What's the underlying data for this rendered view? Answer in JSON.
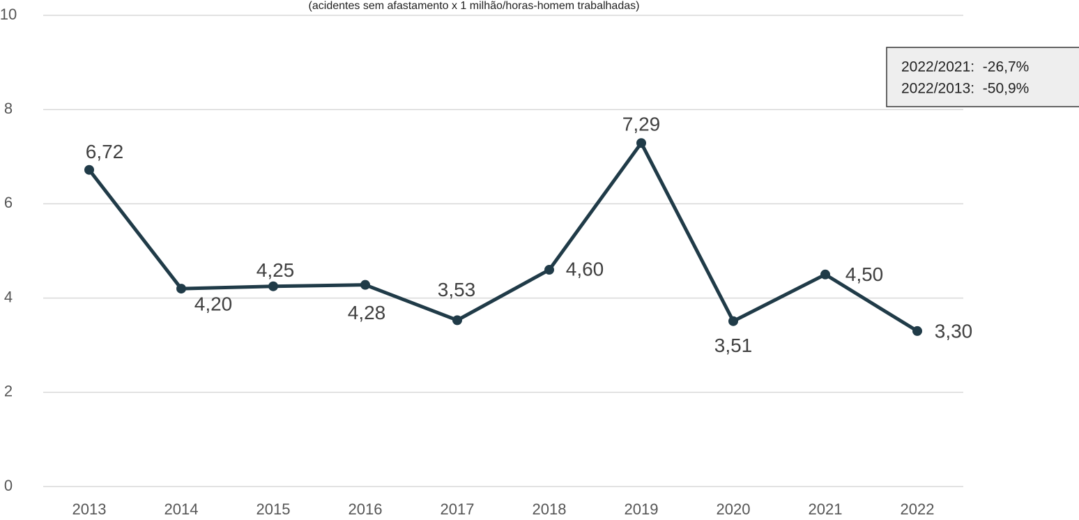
{
  "chart_data": {
    "type": "line",
    "subtitle": "(acidentes sem afastamento x 1 milhão/horas-homem  trabalhadas)",
    "categories": [
      "2013",
      "2014",
      "2015",
      "2016",
      "2017",
      "2018",
      "2019",
      "2020",
      "2021",
      "2022"
    ],
    "series": [
      {
        "name": "Taxa",
        "color": "#203b48",
        "values": [
          6.72,
          4.2,
          4.25,
          4.28,
          3.53,
          4.6,
          7.29,
          3.51,
          4.5,
          3.3
        ],
        "value_labels": [
          "6,72",
          "4,20",
          "4,25",
          "4,28",
          "3,53",
          "4,60",
          "7,29",
          "3,51",
          "4,50",
          "3,30"
        ]
      }
    ],
    "ylim": [
      0,
      10
    ],
    "yticks": [
      0,
      2,
      4,
      6,
      8,
      10
    ],
    "grid": true,
    "annotations": [
      "2022/2021:  -26,7%",
      "2022/2013:  -50,9%"
    ]
  }
}
